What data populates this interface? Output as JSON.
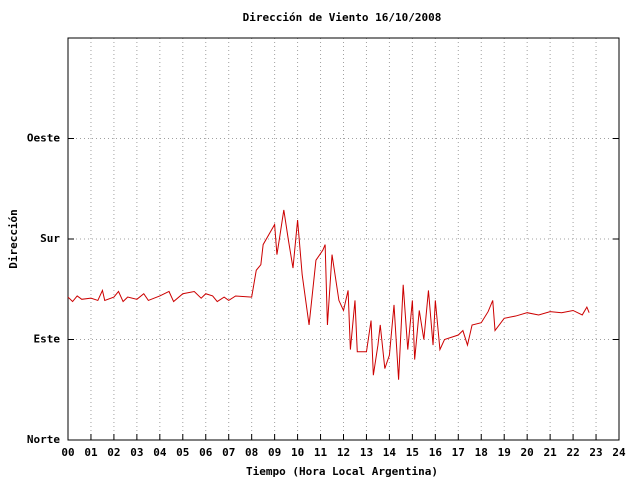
{
  "chart_data": {
    "type": "line",
    "title": "Dirección de Viento 16/10/2008",
    "xlabel": "Tiempo (Hora Local Argentina)",
    "ylabel": "Dirección",
    "x": [
      0.0,
      0.2,
      0.4,
      0.6,
      1.0,
      1.3,
      1.5,
      1.6,
      2.0,
      2.2,
      2.4,
      2.6,
      3.0,
      3.3,
      3.5,
      4.0,
      4.4,
      4.6,
      5.0,
      5.5,
      5.8,
      6.0,
      6.3,
      6.5,
      6.8,
      7.0,
      7.3,
      8.0,
      8.2,
      8.4,
      8.5,
      9.0,
      9.1,
      9.2,
      9.4,
      9.6,
      9.8,
      10.0,
      10.2,
      10.5,
      10.8,
      11.1,
      11.2,
      11.3,
      11.5,
      11.8,
      12.0,
      12.2,
      12.3,
      12.5,
      12.6,
      13.0,
      13.2,
      13.3,
      13.5,
      13.6,
      13.8,
      14.0,
      14.2,
      14.4,
      14.6,
      14.8,
      15.0,
      15.1,
      15.3,
      15.5,
      15.7,
      15.9,
      16.0,
      16.2,
      16.4,
      17.0,
      17.2,
      17.4,
      17.6,
      18.0,
      18.3,
      18.5,
      18.6,
      19.0,
      19.5,
      20.0,
      20.5,
      21.0,
      21.5,
      22.0,
      22.4,
      22.6,
      22.7
    ],
    "series": [
      {
        "color": "#cc0000",
        "values": [
          128,
          124,
          129,
          126,
          127,
          125,
          134,
          125,
          128,
          133,
          124,
          128,
          126,
          131,
          125,
          129,
          133,
          124,
          131,
          133,
          127,
          131,
          129,
          124,
          128,
          125,
          129,
          128,
          152,
          157,
          175,
          193,
          166,
          179,
          206,
          179,
          154,
          197,
          148,
          103,
          161,
          170,
          175,
          103,
          166,
          125,
          116,
          134,
          81,
          125,
          79,
          79,
          107,
          58,
          85,
          103,
          64,
          76,
          121,
          54,
          139,
          81,
          125,
          72,
          116,
          90,
          134,
          85,
          125,
          81,
          90,
          94,
          98,
          85,
          103,
          105,
          115,
          125,
          98,
          109,
          111,
          114,
          112,
          115,
          114,
          116,
          112,
          119,
          114
        ]
      }
    ],
    "xlim": [
      0,
      24
    ],
    "xticks": [
      {
        "value": 0,
        "label": "00"
      },
      {
        "value": 1,
        "label": "01"
      },
      {
        "value": 2,
        "label": "02"
      },
      {
        "value": 3,
        "label": "03"
      },
      {
        "value": 4,
        "label": "04"
      },
      {
        "value": 5,
        "label": "05"
      },
      {
        "value": 6,
        "label": "06"
      },
      {
        "value": 7,
        "label": "07"
      },
      {
        "value": 8,
        "label": "08"
      },
      {
        "value": 9,
        "label": "09"
      },
      10,
      11,
      12,
      13,
      14,
      15,
      16,
      17,
      18,
      19,
      20,
      21,
      22,
      23,
      24
    ],
    "ylim": [
      0,
      360
    ],
    "yticks": [
      {
        "value": 0,
        "label": "Norte"
      },
      {
        "value": 90,
        "label": "Este"
      },
      {
        "value": 180,
        "label": "Sur"
      },
      {
        "value": 270,
        "label": "Oeste"
      }
    ],
    "grid": true
  }
}
